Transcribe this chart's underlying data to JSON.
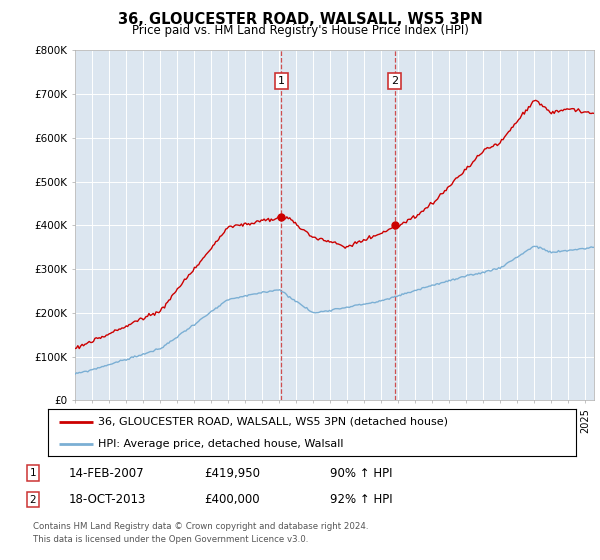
{
  "title": "36, GLOUCESTER ROAD, WALSALL, WS5 3PN",
  "subtitle": "Price paid vs. HM Land Registry's House Price Index (HPI)",
  "ylabel_ticks": [
    "£0",
    "£100K",
    "£200K",
    "£300K",
    "£400K",
    "£500K",
    "£600K",
    "£700K",
    "£800K"
  ],
  "ytick_values": [
    0,
    100000,
    200000,
    300000,
    400000,
    500000,
    600000,
    700000,
    800000
  ],
  "ylim": [
    0,
    800000
  ],
  "xlim_start": 1995.0,
  "xlim_end": 2025.5,
  "hpi_color": "#7bafd4",
  "price_color": "#cc0000",
  "marker1_x": 2007.12,
  "marker1_y": 419950,
  "marker2_x": 2013.79,
  "marker2_y": 400000,
  "legend_line1": "36, GLOUCESTER ROAD, WALSALL, WS5 3PN (detached house)",
  "legend_line2": "HPI: Average price, detached house, Walsall",
  "marker1_date": "14-FEB-2007",
  "marker1_price": "£419,950",
  "marker1_hpi": "90% ↑ HPI",
  "marker2_date": "18-OCT-2013",
  "marker2_price": "£400,000",
  "marker2_hpi": "92% ↑ HPI",
  "footer": "Contains HM Land Registry data © Crown copyright and database right 2024.\nThis data is licensed under the Open Government Licence v3.0.",
  "background_color": "#ffffff",
  "plot_bg_color": "#dce6f0"
}
